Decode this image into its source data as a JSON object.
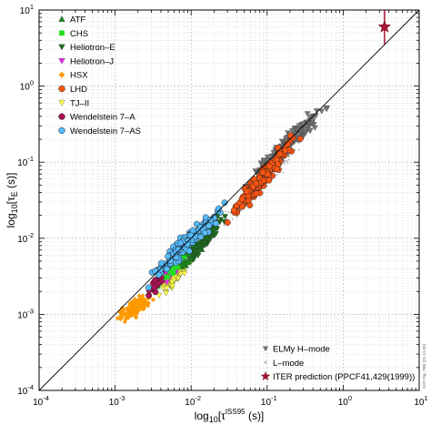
{
  "chart_data": {
    "type": "scatter",
    "title": "",
    "xscale": "log",
    "yscale": "log",
    "xlim": [
      0.0001,
      10
    ],
    "ylim": [
      0.0001,
      10
    ],
    "grid": true,
    "x_tick_labels": [
      {
        "base": "10",
        "exp": "-4"
      },
      {
        "base": "10",
        "exp": "-3"
      },
      {
        "base": "10",
        "exp": "-2"
      },
      {
        "base": "10",
        "exp": "-1"
      },
      {
        "base": "10",
        "exp": "0"
      },
      {
        "base": "10",
        "exp": "1"
      }
    ],
    "y_tick_labels": [
      {
        "base": "10",
        "exp": "-4"
      },
      {
        "base": "10",
        "exp": "-3"
      },
      {
        "base": "10",
        "exp": "-2"
      },
      {
        "base": "10",
        "exp": "-1"
      },
      {
        "base": "10",
        "exp": "0"
      },
      {
        "base": "10",
        "exp": "1"
      }
    ],
    "xlabel": {
      "pre": "log",
      "sub": "10",
      "mid": "[τ",
      "sup": "ISS95",
      "post": " (s)]"
    },
    "ylabel": {
      "pre": "log",
      "sub": "10",
      "mid": "[τ",
      "sub2": "E",
      "post": " (s)]"
    },
    "legend_placement": "top-left",
    "legend_stellarator": [
      {
        "label": "ATF",
        "color": "#1a8a1a",
        "marker": "triangle-up"
      },
      {
        "label": "CHS",
        "color": "#22dd22",
        "marker": "square"
      },
      {
        "label": "Heliotron–E",
        "color": "#1a6e1a",
        "marker": "triangle-down"
      },
      {
        "label": "Heliotron–J",
        "color": "#ee22ee",
        "marker": "triangle-down"
      },
      {
        "label": "HSX",
        "color": "#ff9900",
        "marker": "diamond"
      },
      {
        "label": "LHD",
        "color": "#ff5511",
        "marker": "circle"
      },
      {
        "label": "TJ–II",
        "color": "#ffff44",
        "marker": "triangle-down"
      },
      {
        "label": "Wendelstein 7–A",
        "color": "#aa1155",
        "marker": "circle"
      },
      {
        "label": "Wendelstein 7–AS",
        "color": "#55bbff",
        "marker": "circle"
      }
    ],
    "legend_tokamak": [
      {
        "label": "ELMy H–mode",
        "color": "#777777",
        "marker": "triangle-down"
      },
      {
        "label": "L–mode",
        "color": "#999999",
        "marker": "dot"
      },
      {
        "label": "ITER prediction (PPCF41,429(1999))",
        "color": "#aa1133",
        "marker": "star"
      }
    ],
    "series": [
      {
        "name": "ELMy H–mode",
        "color": "#777777",
        "x_range": [
          0.03,
          1.0
        ],
        "y_range": [
          0.025,
          1.0
        ],
        "count": 260
      },
      {
        "name": "L–mode",
        "color": "#999999",
        "x_range": [
          0.01,
          0.6
        ],
        "y_range": [
          0.006,
          0.4
        ],
        "count": 200
      },
      {
        "name": "HSX",
        "color": "#ff9900",
        "x_range": [
          0.0009,
          0.004
        ],
        "y_range": [
          0.0008,
          0.002
        ],
        "count": 150
      },
      {
        "name": "TJ–II",
        "color": "#ffff44",
        "x_range": [
          0.003,
          0.012
        ],
        "y_range": [
          0.0015,
          0.006
        ],
        "count": 60
      },
      {
        "name": "Heliotron–J",
        "color": "#ee22ee",
        "x_range": [
          0.003,
          0.012
        ],
        "y_range": [
          0.002,
          0.01
        ],
        "count": 70
      },
      {
        "name": "CHS",
        "color": "#22dd22",
        "x_range": [
          0.003,
          0.015
        ],
        "y_range": [
          0.002,
          0.012
        ],
        "count": 70
      },
      {
        "name": "ATF",
        "color": "#1a8a1a",
        "x_range": [
          0.005,
          0.03
        ],
        "y_range": [
          0.003,
          0.02
        ],
        "count": 70
      },
      {
        "name": "Heliotron–E",
        "color": "#1a6e1a",
        "x_range": [
          0.007,
          0.04
        ],
        "y_range": [
          0.004,
          0.03
        ],
        "count": 70
      },
      {
        "name": "Wendelstein 7–A",
        "color": "#aa1155",
        "x_range": [
          0.002,
          0.006
        ],
        "y_range": [
          0.0015,
          0.004
        ],
        "count": 12
      },
      {
        "name": "Wendelstein 7–AS",
        "color": "#55bbff",
        "x_range": [
          0.002,
          0.04
        ],
        "y_range": [
          0.002,
          0.04
        ],
        "count": 160
      },
      {
        "name": "LHD",
        "color": "#ff5511",
        "x_range": [
          0.02,
          0.4
        ],
        "y_range": [
          0.01,
          0.4
        ],
        "count": 190
      }
    ],
    "iter_prediction": {
      "x": 3.5,
      "y": 6.0,
      "y_err": [
        3.5,
        10.0
      ],
      "color": "#aa1133"
    },
    "reference_line": {
      "x": [
        0.0001,
        10
      ],
      "y": [
        0.0001,
        10
      ]
    },
    "side_note": "ADT Fig. 7BB (21-11-05)"
  }
}
